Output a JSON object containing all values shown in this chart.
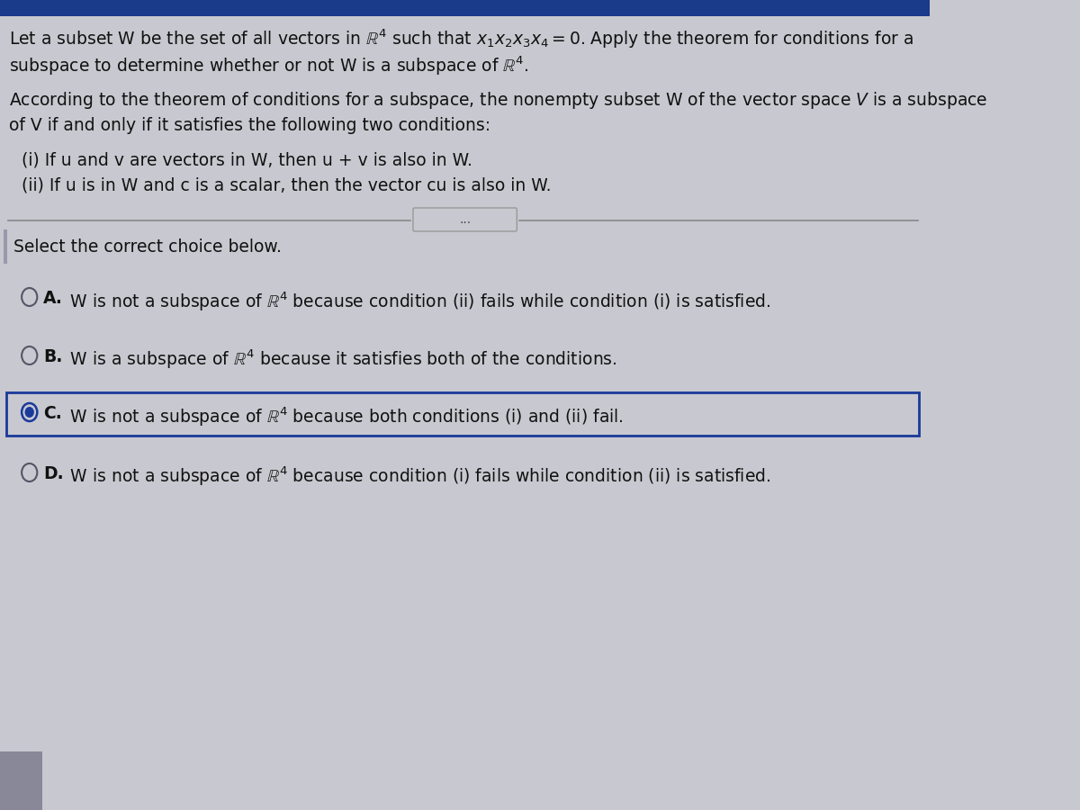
{
  "bg_color": "#c8c8d0",
  "text_color": "#111111",
  "line1": "Let a subset W be the set of all vectors in $\\mathbb{R}^4$ such that $x_1x_2x_3x_4 = 0$. Apply the theorem for conditions for a",
  "line2": "subspace to determine whether or not W is a subspace of $\\mathbb{R}^4$.",
  "theorem1": "According to the theorem of conditions for a subspace, the nonempty subset W of the vector space $V$ is a subspace",
  "theorem2": "of V if and only if it satisfies the following two conditions:",
  "cond_i": "(i) If u and v are vectors in W, then u + v is also in W.",
  "cond_ii": "(ii) If u is in W and c is a scalar, then the vector cu is also in W.",
  "select_text": "Select the correct choice below.",
  "choice_A_label": "A.",
  "choice_A_text": " W is not a subspace of $\\mathbb{R}^4$ because condition (ii) fails while condition (i) is satisfied.",
  "choice_B_label": "B.",
  "choice_B_text": " W is a subspace of $\\mathbb{R}^4$ because it satisfies both of the conditions.",
  "choice_C_label": "C.",
  "choice_C_text": " W is not a subspace of $\\mathbb{R}^4$ because both conditions (i) and (ii) fail.",
  "choice_D_label": "D.",
  "choice_D_text": " W is not a subspace of $\\mathbb{R}^4$ because condition (i) fails while condition (ii) is satisfied.",
  "selected_choice": "C",
  "box_color": "#1a3a9a",
  "radio_color": "#1a3a9a",
  "unselected_color": "#555566",
  "divider_color": "#888888",
  "left_bar_color": "#9999aa",
  "bottom_rect_color": "#888899"
}
